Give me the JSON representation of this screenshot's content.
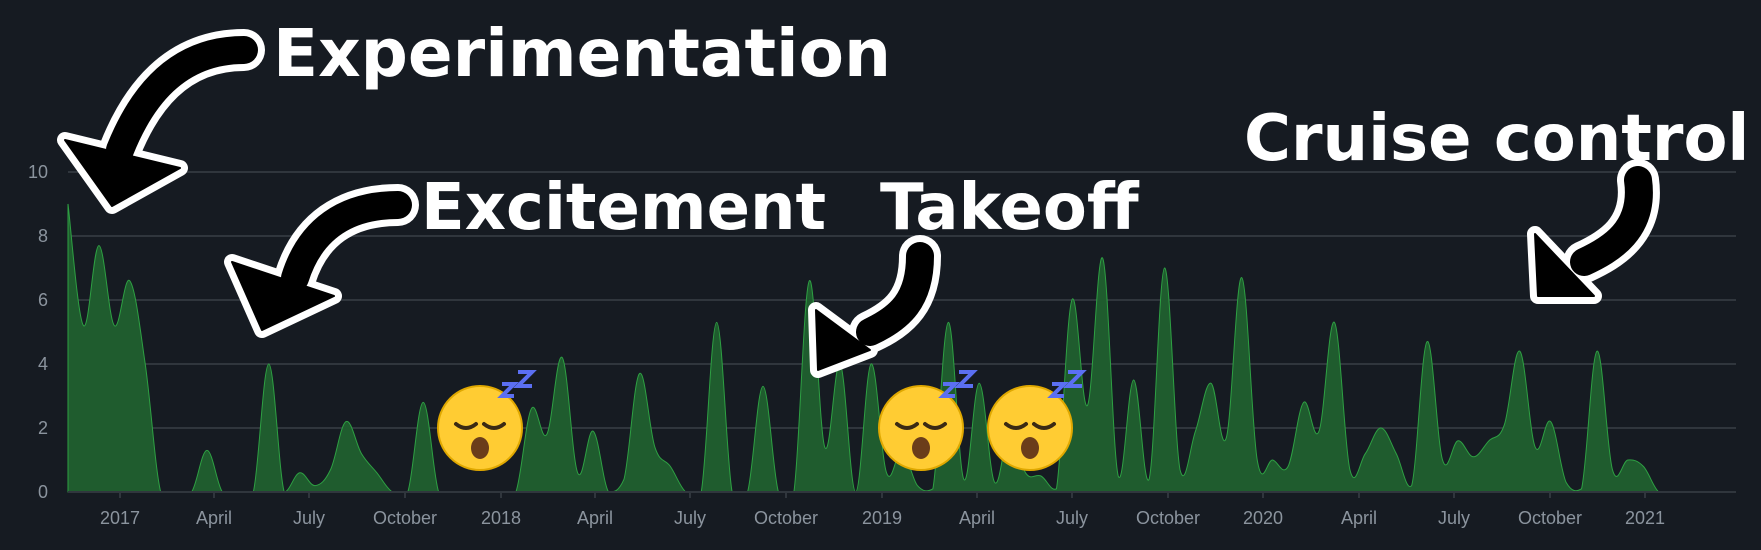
{
  "chart_data": {
    "type": "area",
    "title": "",
    "xlabel": "",
    "ylabel": "",
    "ylim": [
      0,
      10
    ],
    "yticks": [
      0,
      2,
      4,
      6,
      8,
      10
    ],
    "grid": true,
    "area_color": "#1f5c2e",
    "area_stroke": "#2ea043",
    "x_tick_labels": [
      "2017",
      "April",
      "July",
      "October",
      "2018",
      "April",
      "July",
      "October",
      "2019",
      "April",
      "July",
      "October",
      "2020",
      "April",
      "July",
      "October",
      "2021"
    ],
    "x_start": "2016-11",
    "x_end": "2021-11",
    "series": [
      {
        "x": [
          "2016-11",
          "2016-11",
          "2016-11",
          "2016-12",
          "2016-12",
          "2016-12",
          "2016-12",
          "2017-01",
          "2017-02",
          "2017-02",
          "2017-03",
          "2017-03",
          "2017-04",
          "2017-04",
          "2017-04",
          "2017-05",
          "2017-05",
          "2017-05",
          "2017-06",
          "2017-06",
          "2017-06",
          "2017-06",
          "2017-07",
          "2017-07",
          "2017-08",
          "2017-08",
          "2017-08",
          "2017-09",
          "2017-09",
          "2018-03",
          "2018-04",
          "2018-04",
          "2018-04",
          "2018-05",
          "2018-05",
          "2018-05",
          "2018-06",
          "2018-06",
          "2018-06",
          "2018-07",
          "2018-07",
          "2018-09",
          "2018-10",
          "2018-10",
          "2018-11",
          "2018-11",
          "2018-11",
          "2019-09",
          "2019-10",
          "2019-10",
          "2019-10",
          "2019-11",
          "2019-11",
          "2019-11",
          "2019-12",
          "2019-12",
          "2020-01",
          "2020-01",
          "2020-02",
          "2020-02",
          "2020-03",
          "2020-03",
          "2020-03",
          "2020-04",
          "2020-04",
          "2020-05",
          "2020-05",
          "2020-05",
          "2020-06",
          "2020-06",
          "2020-07",
          "2020-07",
          "2020-07",
          "2020-08",
          "2020-08",
          "2020-08",
          "2020-09",
          "2020-09",
          "2020-10",
          "2020-10",
          "2020-11",
          "2020-11",
          "2020-11",
          "2020-12",
          "2020-12",
          "2020-12",
          "2021-01",
          "2021-01",
          "2021-02",
          "2021-02",
          "2021-03",
          "2021-04",
          "2021-04",
          "2021-04",
          "2021-05",
          "2021-05",
          "2021-06",
          "2021-07",
          "2021-07",
          "2021-08",
          "2021-08",
          "2021-09",
          "2021-09",
          "2021-09",
          "2021-10",
          "2021-10",
          "2021-10",
          "2021-11",
          "2021-11"
        ],
        "y": [
          9.0,
          5.2,
          7.7,
          5.2,
          6.6,
          4.0,
          0,
          0,
          0,
          1.3,
          0,
          0,
          0,
          4.0,
          0,
          0.6,
          0.2,
          0.7,
          2.2,
          1.2,
          0.6,
          0,
          0,
          2.8,
          0,
          0,
          0,
          0,
          0,
          0,
          2.6,
          1.8,
          4.2,
          0.6,
          1.9,
          0,
          0.4,
          3.7,
          1.4,
          0.8,
          0,
          0,
          5.3,
          0,
          0,
          3.3,
          0,
          0,
          6.6,
          1.4,
          4.0,
          0,
          4.0,
          0.6,
          1.3,
          0.2,
          0.1,
          5.3,
          0.4,
          3.4,
          0.3,
          2.0,
          0.6,
          0.5,
          0.1,
          6.0,
          2.7,
          7.3,
          0.5,
          3.5,
          0.4,
          7.0,
          0.7,
          1.9,
          3.4,
          1.7,
          6.7,
          1.0,
          1.0,
          0.8,
          2.8,
          1.9,
          5.3,
          0.7,
          1.2,
          2.0,
          1.2,
          0.2,
          4.7,
          1.0,
          1.6,
          1.1,
          1.6,
          2.1,
          4.4,
          1.4,
          2.2,
          0.3,
          0.1,
          4.4,
          0.7,
          1.0,
          0.8,
          0,
          0,
          0,
          0,
          0,
          0
        ]
      }
    ],
    "annotations": [
      {
        "text": "Experimentation"
      },
      {
        "text": "Excitement"
      },
      {
        "text": "Takeoff"
      },
      {
        "text": "Cruise control"
      }
    ],
    "icons": [
      "sleeping-face-icon",
      "sleeping-face-icon",
      "sleeping-face-icon"
    ]
  }
}
